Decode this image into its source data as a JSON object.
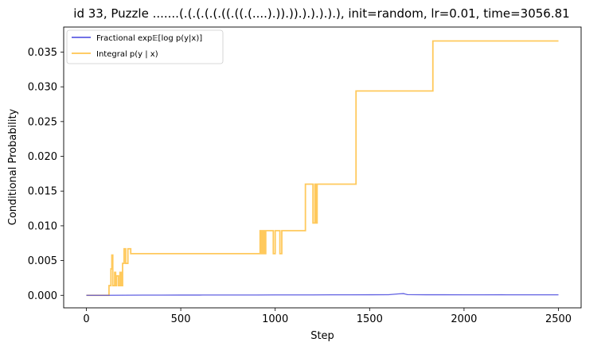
{
  "chart_data": {
    "type": "line",
    "title": "id 33, Puzzle .......(.(.(.(.(.((.((.(....).)).)).).).).).), init=random, lr=0.01, time=3056.81",
    "xlabel": "Step",
    "ylabel": "Conditional Probability",
    "xlim": [
      -120,
      2620
    ],
    "ylim": [
      -0.0018,
      0.0386
    ],
    "xticks": [
      0,
      500,
      1000,
      1500,
      2000,
      2500
    ],
    "xtick_labels": [
      "0",
      "500",
      "1000",
      "1500",
      "2000",
      "2500"
    ],
    "yticks": [
      0.0,
      0.005,
      0.01,
      0.015,
      0.02,
      0.025,
      0.03,
      0.035
    ],
    "ytick_labels": [
      "0.000",
      "0.005",
      "0.010",
      "0.015",
      "0.020",
      "0.025",
      "0.030",
      "0.035"
    ],
    "grid": false,
    "legend_position": "top-left",
    "series": [
      {
        "name": "Fractional exp𝔼[log p(y|x)]",
        "color": "#4444dd",
        "x": [
          0,
          100,
          200,
          300,
          400,
          500,
          600,
          700,
          800,
          900,
          1000,
          1100,
          1200,
          1300,
          1400,
          1500,
          1600,
          1650,
          1680,
          1700,
          1800,
          1900,
          2000,
          2100,
          2200,
          2300,
          2400,
          2500
        ],
        "y": [
          0.0,
          0.0,
          2e-05,
          3e-05,
          3e-05,
          4e-05,
          4e-05,
          5e-05,
          5e-05,
          5e-05,
          6e-05,
          6e-05,
          6e-05,
          7e-05,
          7e-05,
          8e-05,
          9e-05,
          0.0002,
          0.00025,
          0.0001,
          8e-05,
          8e-05,
          7e-05,
          7e-05,
          8e-05,
          7e-05,
          7e-05,
          7e-05
        ]
      },
      {
        "name": "Integral p(y | x)",
        "color": "#ffbb33",
        "x": [
          0,
          120,
          120,
          130,
          130,
          135,
          135,
          140,
          140,
          150,
          150,
          155,
          155,
          160,
          160,
          170,
          170,
          178,
          178,
          185,
          185,
          192,
          192,
          200,
          200,
          208,
          208,
          220,
          220,
          235,
          235,
          920,
          920,
          925,
          925,
          930,
          930,
          935,
          935,
          940,
          940,
          945,
          945,
          950,
          950,
          990,
          990,
          1000,
          1000,
          1010,
          1010,
          1025,
          1025,
          1035,
          1035,
          1160,
          1160,
          1200,
          1200,
          1210,
          1210,
          1215,
          1215,
          1222,
          1222,
          1230,
          1230,
          1428,
          1428,
          1835,
          1835,
          2500
        ],
        "y": [
          0.0,
          0.0,
          0.0014,
          0.0014,
          0.0038,
          0.0038,
          0.0058,
          0.0058,
          0.0014,
          0.0014,
          0.0033,
          0.0033,
          0.0014,
          0.0014,
          0.0028,
          0.0028,
          0.0014,
          0.0014,
          0.0033,
          0.0033,
          0.0014,
          0.0014,
          0.0046,
          0.0046,
          0.0067,
          0.0067,
          0.0046,
          0.0046,
          0.0067,
          0.0067,
          0.006,
          0.006,
          0.0093,
          0.0093,
          0.006,
          0.006,
          0.0093,
          0.0093,
          0.006,
          0.006,
          0.0093,
          0.0093,
          0.006,
          0.006,
          0.0093,
          0.0093,
          0.006,
          0.006,
          0.0093,
          0.0093,
          0.0093,
          0.0093,
          0.006,
          0.006,
          0.0093,
          0.0093,
          0.016,
          0.016,
          0.0104,
          0.0104,
          0.016,
          0.016,
          0.0104,
          0.0104,
          0.016,
          0.016,
          0.016,
          0.016,
          0.0294,
          0.0294,
          0.0366,
          0.0366
        ]
      }
    ]
  },
  "legend": {
    "fractional_text": "Fractional exp𝔼[log p(y|x)]",
    "integral_text": "Integral p(y | x)"
  }
}
